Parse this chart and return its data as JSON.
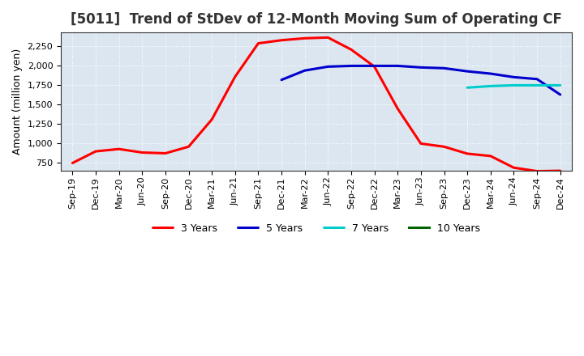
{
  "title": "[5011]  Trend of StDev of 12-Month Moving Sum of Operating CF",
  "ylabel": "Amount (million yen)",
  "background_color": "#ffffff",
  "plot_bg_color": "#dce6f0",
  "grid_color": "#ffffff",
  "x_labels": [
    "Sep-19",
    "Dec-19",
    "Mar-20",
    "Jun-20",
    "Sep-20",
    "Dec-20",
    "Mar-21",
    "Jun-21",
    "Sep-21",
    "Dec-21",
    "Mar-22",
    "Jun-22",
    "Sep-22",
    "Dec-22",
    "Mar-23",
    "Jun-23",
    "Sep-23",
    "Dec-23",
    "Mar-24",
    "Jun-24",
    "Sep-24",
    "Dec-24"
  ],
  "series": [
    {
      "key": "3y",
      "label": "3 Years",
      "color": "#ff0000",
      "values": [
        750,
        900,
        930,
        885,
        875,
        960,
        1310,
        1860,
        2290,
        2330,
        2355,
        2365,
        2210,
        1990,
        1450,
        1000,
        960,
        870,
        840,
        690,
        645,
        650
      ]
    },
    {
      "key": "5y",
      "label": "5 Years",
      "color": "#0000cc",
      "values": [
        null,
        null,
        null,
        null,
        null,
        null,
        null,
        null,
        null,
        1820,
        1940,
        1990,
        2000,
        2000,
        2000,
        1980,
        1970,
        1930,
        1900,
        1855,
        1830,
        1630
      ]
    },
    {
      "key": "7y",
      "label": "7 Years",
      "color": "#00cccc",
      "values": [
        null,
        null,
        null,
        null,
        null,
        null,
        null,
        null,
        null,
        null,
        null,
        null,
        null,
        null,
        null,
        null,
        null,
        1720,
        1740,
        1750,
        1750,
        1750
      ]
    },
    {
      "key": "10y",
      "label": "10 Years",
      "color": "#006600",
      "values": [
        null,
        null,
        null,
        null,
        null,
        null,
        null,
        null,
        null,
        null,
        null,
        null,
        null,
        null,
        null,
        null,
        null,
        null,
        null,
        null,
        null,
        null
      ]
    }
  ],
  "ylim": [
    650,
    2430
  ],
  "yticks": [
    750,
    1000,
    1250,
    1500,
    1750,
    2000,
    2250
  ],
  "title_fontsize": 12,
  "axis_label_fontsize": 9,
  "tick_fontsize": 8,
  "legend_fontsize": 9,
  "line_width": 2.2
}
